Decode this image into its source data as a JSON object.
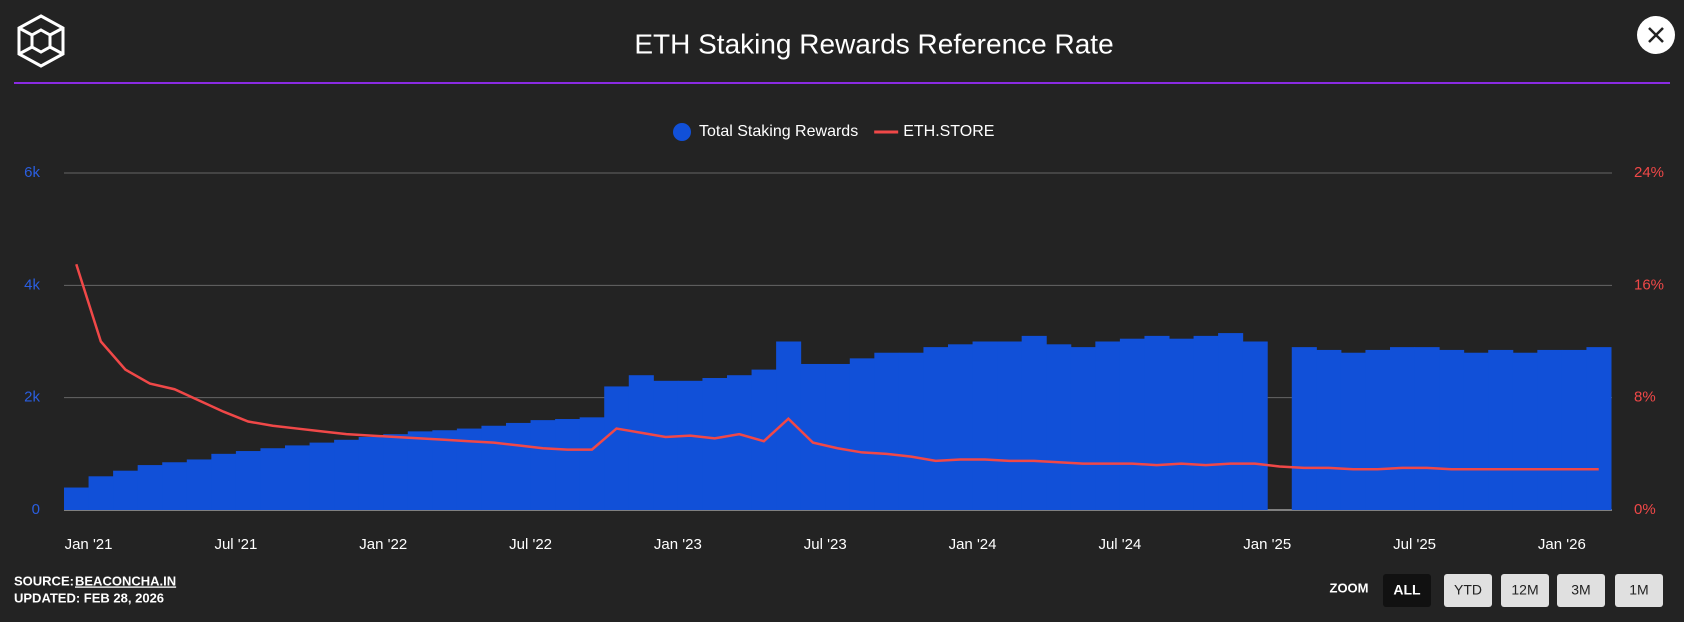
{
  "chart_data": {
    "type": "bar-line",
    "title": "ETH Staking Rewards Reference Rate",
    "x": [
      "2020-12",
      "2021-01",
      "2021-02",
      "2021-03",
      "2021-04",
      "2021-05",
      "2021-06",
      "2021-07",
      "2021-08",
      "2021-09",
      "2021-10",
      "2021-11",
      "2021-12",
      "2022-01",
      "2022-02",
      "2022-03",
      "2022-04",
      "2022-05",
      "2022-06",
      "2022-07",
      "2022-08",
      "2022-09",
      "2022-10",
      "2022-11",
      "2022-12",
      "2023-01",
      "2023-02",
      "2023-03",
      "2023-04",
      "2023-05",
      "2023-06",
      "2023-07",
      "2023-08",
      "2023-09",
      "2023-10",
      "2023-11",
      "2023-12",
      "2024-01",
      "2024-02",
      "2024-03",
      "2024-04",
      "2024-05",
      "2024-06",
      "2024-07",
      "2024-08",
      "2024-09",
      "2024-10",
      "2024-11",
      "2024-12",
      "2025-01",
      "2025-02",
      "2025-03",
      "2025-04",
      "2025-05",
      "2025-06",
      "2025-07",
      "2025-08",
      "2025-09",
      "2025-10",
      "2025-11",
      "2025-12",
      "2026-01",
      "2026-02"
    ],
    "series": [
      {
        "name": "Total Staking Rewards",
        "color": "#1150d8",
        "kind": "bar",
        "values": [
          400,
          600,
          700,
          800,
          850,
          900,
          1000,
          1050,
          1100,
          1150,
          1200,
          1250,
          1300,
          1350,
          1400,
          1420,
          1450,
          1500,
          1550,
          1600,
          1620,
          1650,
          2200,
          2400,
          2300,
          2300,
          2350,
          2400,
          2500,
          3000,
          2600,
          2600,
          2700,
          2800,
          2800,
          2900,
          2950,
          3000,
          3000,
          3100,
          2950,
          2900,
          3000,
          3050,
          3100,
          3050,
          3100,
          3150,
          3000,
          null,
          2900,
          2850,
          2800,
          2850,
          2900,
          2900,
          2850,
          2800,
          2850,
          2800,
          2850,
          2850,
          2900
        ]
      },
      {
        "name": "ETH.STORE",
        "color": "#f04848",
        "kind": "line",
        "axis": "y2",
        "values": [
          17.5,
          12,
          10,
          9,
          8.6,
          7.8,
          7,
          6.3,
          6,
          5.8,
          5.6,
          5.4,
          5.3,
          5.2,
          5.1,
          5,
          4.9,
          4.8,
          4.6,
          4.4,
          4.3,
          4.3,
          5.8,
          5.5,
          5.2,
          5.3,
          5.1,
          5.4,
          4.9,
          6.5,
          4.8,
          4.4,
          4.1,
          4,
          3.8,
          3.5,
          3.6,
          3.6,
          3.5,
          3.5,
          3.4,
          3.3,
          3.3,
          3.3,
          3.2,
          3.3,
          3.2,
          3.3,
          3.3,
          3.1,
          3,
          3,
          2.9,
          2.9,
          3,
          3,
          2.9,
          2.9,
          2.9,
          2.9,
          2.9,
          2.9,
          2.9
        ]
      }
    ],
    "xlim": [
      "2020-12",
      "2026-03"
    ],
    "xticks": [
      {
        "value": "2021-01",
        "label": "Jan '21"
      },
      {
        "value": "2021-07",
        "label": "Jul '21"
      },
      {
        "value": "2022-01",
        "label": "Jan '22"
      },
      {
        "value": "2022-07",
        "label": "Jul '22"
      },
      {
        "value": "2023-01",
        "label": "Jan '23"
      },
      {
        "value": "2023-07",
        "label": "Jul '23"
      },
      {
        "value": "2024-01",
        "label": "Jan '24"
      },
      {
        "value": "2024-07",
        "label": "Jul '24"
      },
      {
        "value": "2025-01",
        "label": "Jan '25"
      },
      {
        "value": "2025-07",
        "label": "Jul '25"
      },
      {
        "value": "2026-01",
        "label": "Jan '26"
      }
    ],
    "ylim": [
      0,
      6000
    ],
    "yticks": [
      0,
      {
        "value": 2000,
        "label": "2k"
      },
      {
        "value": 4000,
        "label": "4k"
      },
      {
        "value": 6000,
        "label": "6k"
      }
    ],
    "y2lim": [
      0,
      24
    ],
    "y2ticks": [
      {
        "value": 0,
        "label": "0%"
      },
      {
        "value": 8,
        "label": "8%"
      },
      {
        "value": 16,
        "label": "16%"
      },
      {
        "value": 24,
        "label": "24%"
      }
    ],
    "grid": true
  },
  "footer": {
    "source_label": "SOURCE:",
    "source": "BEACONCHA.IN",
    "updated": "UPDATED: FEB 28, 2026"
  },
  "zoom": {
    "label": "ZOOM",
    "buttons": [
      "ALL",
      "YTD",
      "12M",
      "3M",
      "1M"
    ],
    "active": 0
  }
}
